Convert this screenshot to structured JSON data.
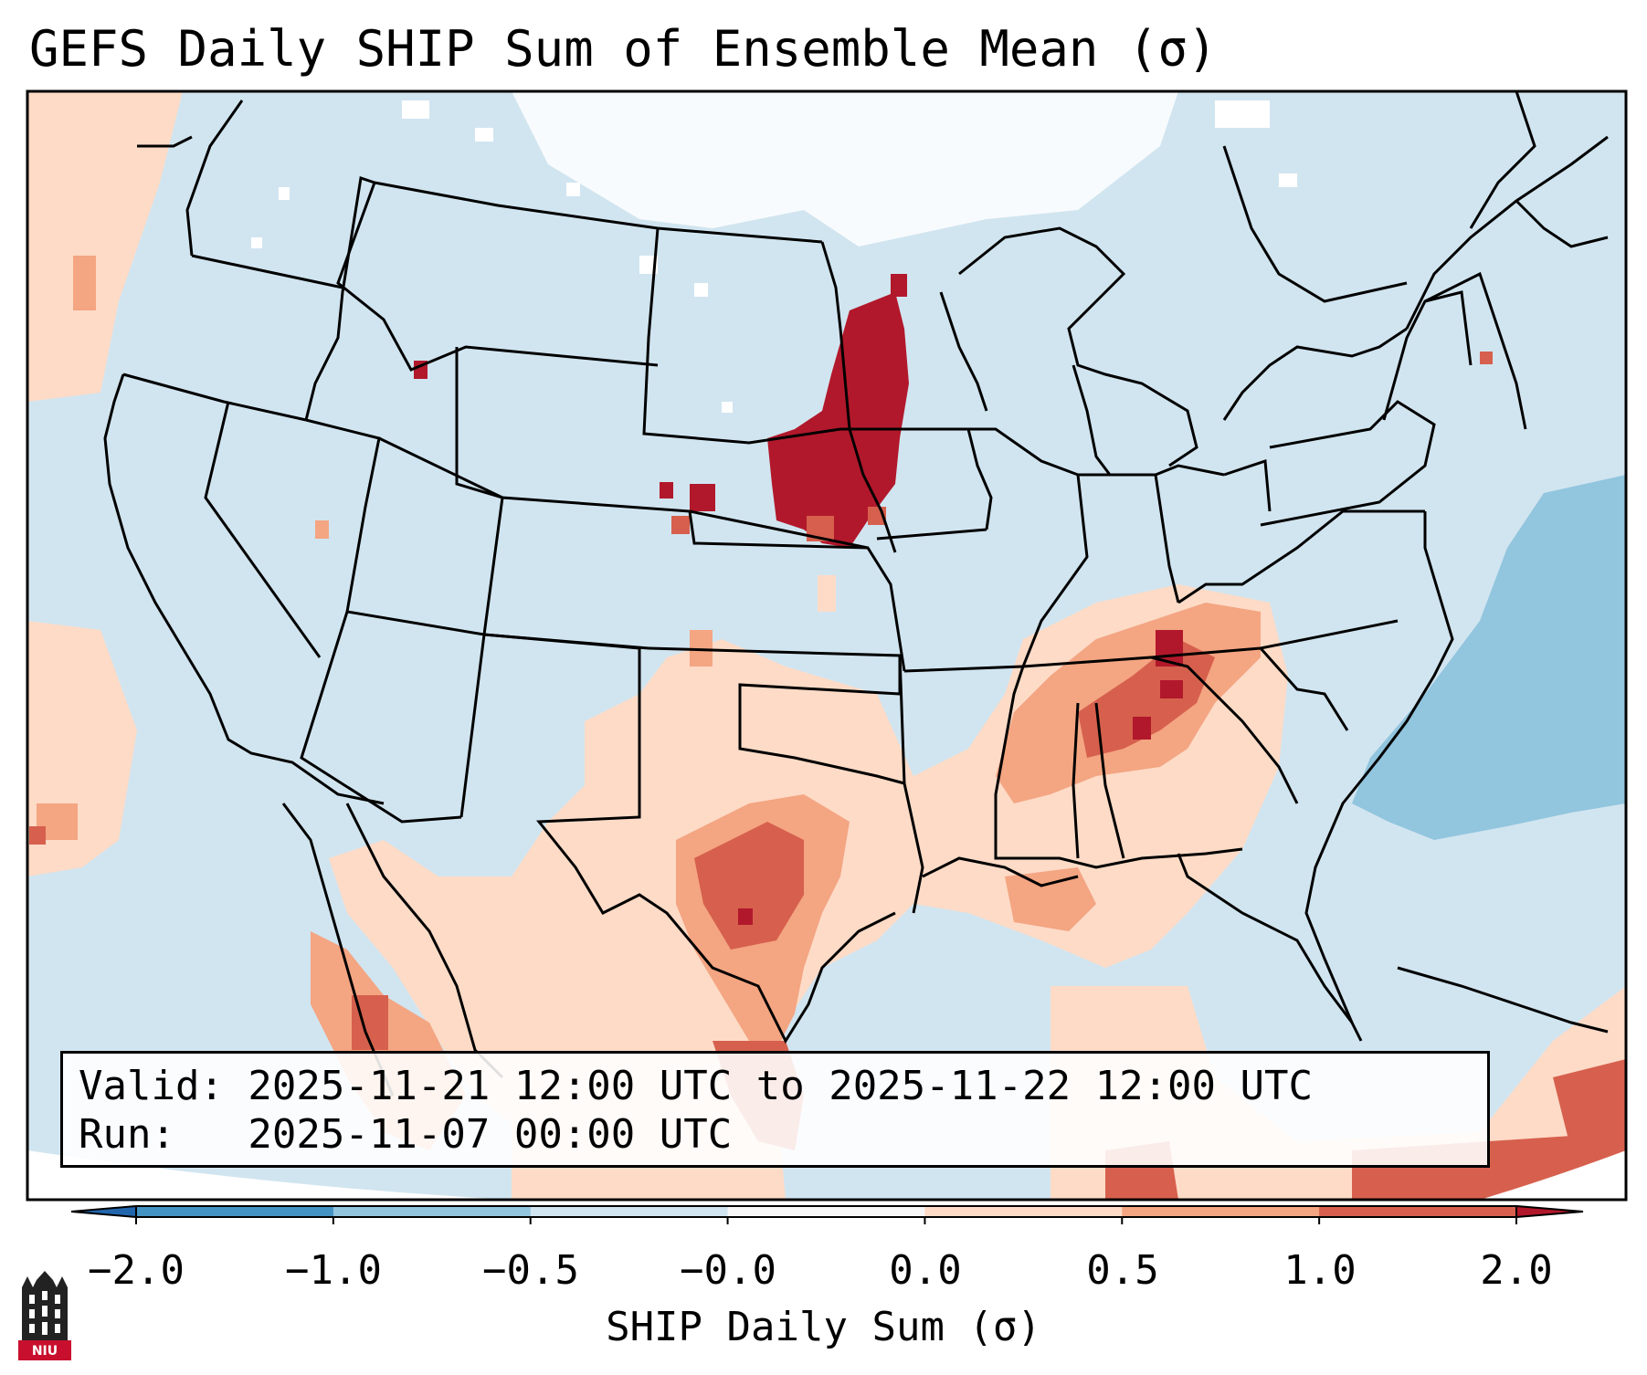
{
  "title": "GEFS Daily SHIP Sum of Ensemble Mean (σ)",
  "map": {
    "projection": "Lambert conformal, CONUS",
    "variable": "SHIP daily sum of ensemble mean (standard anomaly σ)",
    "regions": [
      {
        "name": "northern-plains-maximum",
        "category": "> 2.0"
      },
      {
        "name": "tennessee-valley-maximum",
        "category": "1.0 to 2.0"
      },
      {
        "name": "central-texas-area",
        "category": "0.5 to 1.0"
      },
      {
        "name": "gulf-of-mexico",
        "category": "0.0 to 0.5"
      },
      {
        "name": "western-atlantic-negative",
        "category": "-1.0 to -0.5"
      }
    ]
  },
  "info": {
    "valid": "Valid: 2025-11-21 12:00 UTC to 2025-11-22 12:00 UTC",
    "run": "Run:   2025-11-07 00:00 UTC"
  },
  "colorbar": {
    "label": "SHIP Daily Sum (σ)",
    "ticks": [
      "−2.0",
      "−1.0",
      "−0.5",
      "−0.0",
      "0.0",
      "0.5",
      "1.0",
      "2.0"
    ],
    "bins": [
      {
        "range": "-2.0 to -1.0",
        "color": "#4393c3"
      },
      {
        "range": "-1.0 to -0.5",
        "color": "#92c5de"
      },
      {
        "range": "-0.5 to -0.0",
        "color": "#d1e5f0"
      },
      {
        "range": "-0.0 to 0.0",
        "color": "#f7f7f7"
      },
      {
        "range": "0.0 to 0.5",
        "color": "#fddbc7"
      },
      {
        "range": "0.5 to 1.0",
        "color": "#f4a582"
      },
      {
        "range": "1.0 to 2.0",
        "color": "#d6604d"
      }
    ],
    "extend_low_color": "#2166ac",
    "extend_high_color": "#b2182b"
  },
  "logo": {
    "text": "NIU",
    "color": "#c8102e"
  }
}
